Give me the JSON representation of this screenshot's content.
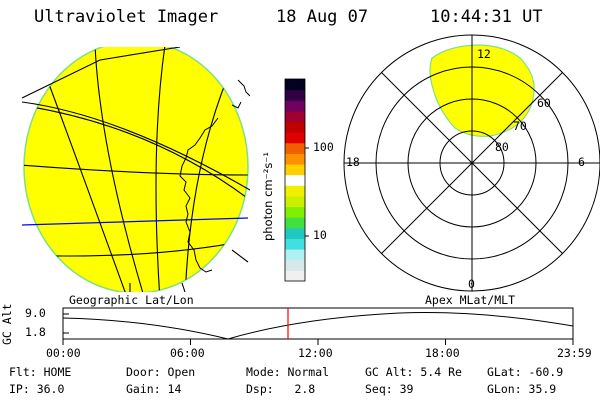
{
  "header": {
    "instrument": "Ultraviolet Imager",
    "date": "18 Aug 07",
    "time": "10:44:31 UT"
  },
  "colorbar": {
    "unit_label": "photon cm⁻²s⁻¹",
    "tick_labels": [
      "100",
      "10"
    ],
    "colors": [
      "#f0f0f0",
      "#d8e8e8",
      "#b0f0f0",
      "#40e0e0",
      "#20c8c0",
      "#40e040",
      "#80f000",
      "#c8f000",
      "#f0f000",
      "#ffffff",
      "#ffd000",
      "#ff9000",
      "#f06000",
      "#e00000",
      "#c00000",
      "#a00030",
      "#700060",
      "#300040",
      "#000020"
    ]
  },
  "geo_map": {
    "label": "Geographic Lat/Lon",
    "fill_color": "#ffff00",
    "grid_color": "#000000",
    "equator_color": "#0000ff"
  },
  "polar_map": {
    "label": "Apex MLat/MLT",
    "mlt_labels": {
      "top": "12",
      "right": "6",
      "bottom": "0",
      "left": "18"
    },
    "lat_labels": [
      "80",
      "70",
      "60"
    ]
  },
  "orbit_plot": {
    "ylabel": "GC Alt",
    "y_ticks": [
      "9.0",
      "1.8"
    ],
    "x_ticks": [
      "00:00",
      "06:00",
      "12:00",
      "18:00",
      "23:59"
    ],
    "current_marker_color": "#ff0000"
  },
  "status": {
    "flt": "Flt: HOME",
    "ip": "IP: 36.0",
    "door": "Door: Open",
    "gain": "Gain: 14",
    "mode": "Mode: Normal",
    "dsp": "Dsp:   2.8",
    "gcalt": "GC Alt: 5.4 Re",
    "seq": "Seq: 39",
    "glat": "GLat: -60.9",
    "glon": "GLon: 35.9"
  }
}
